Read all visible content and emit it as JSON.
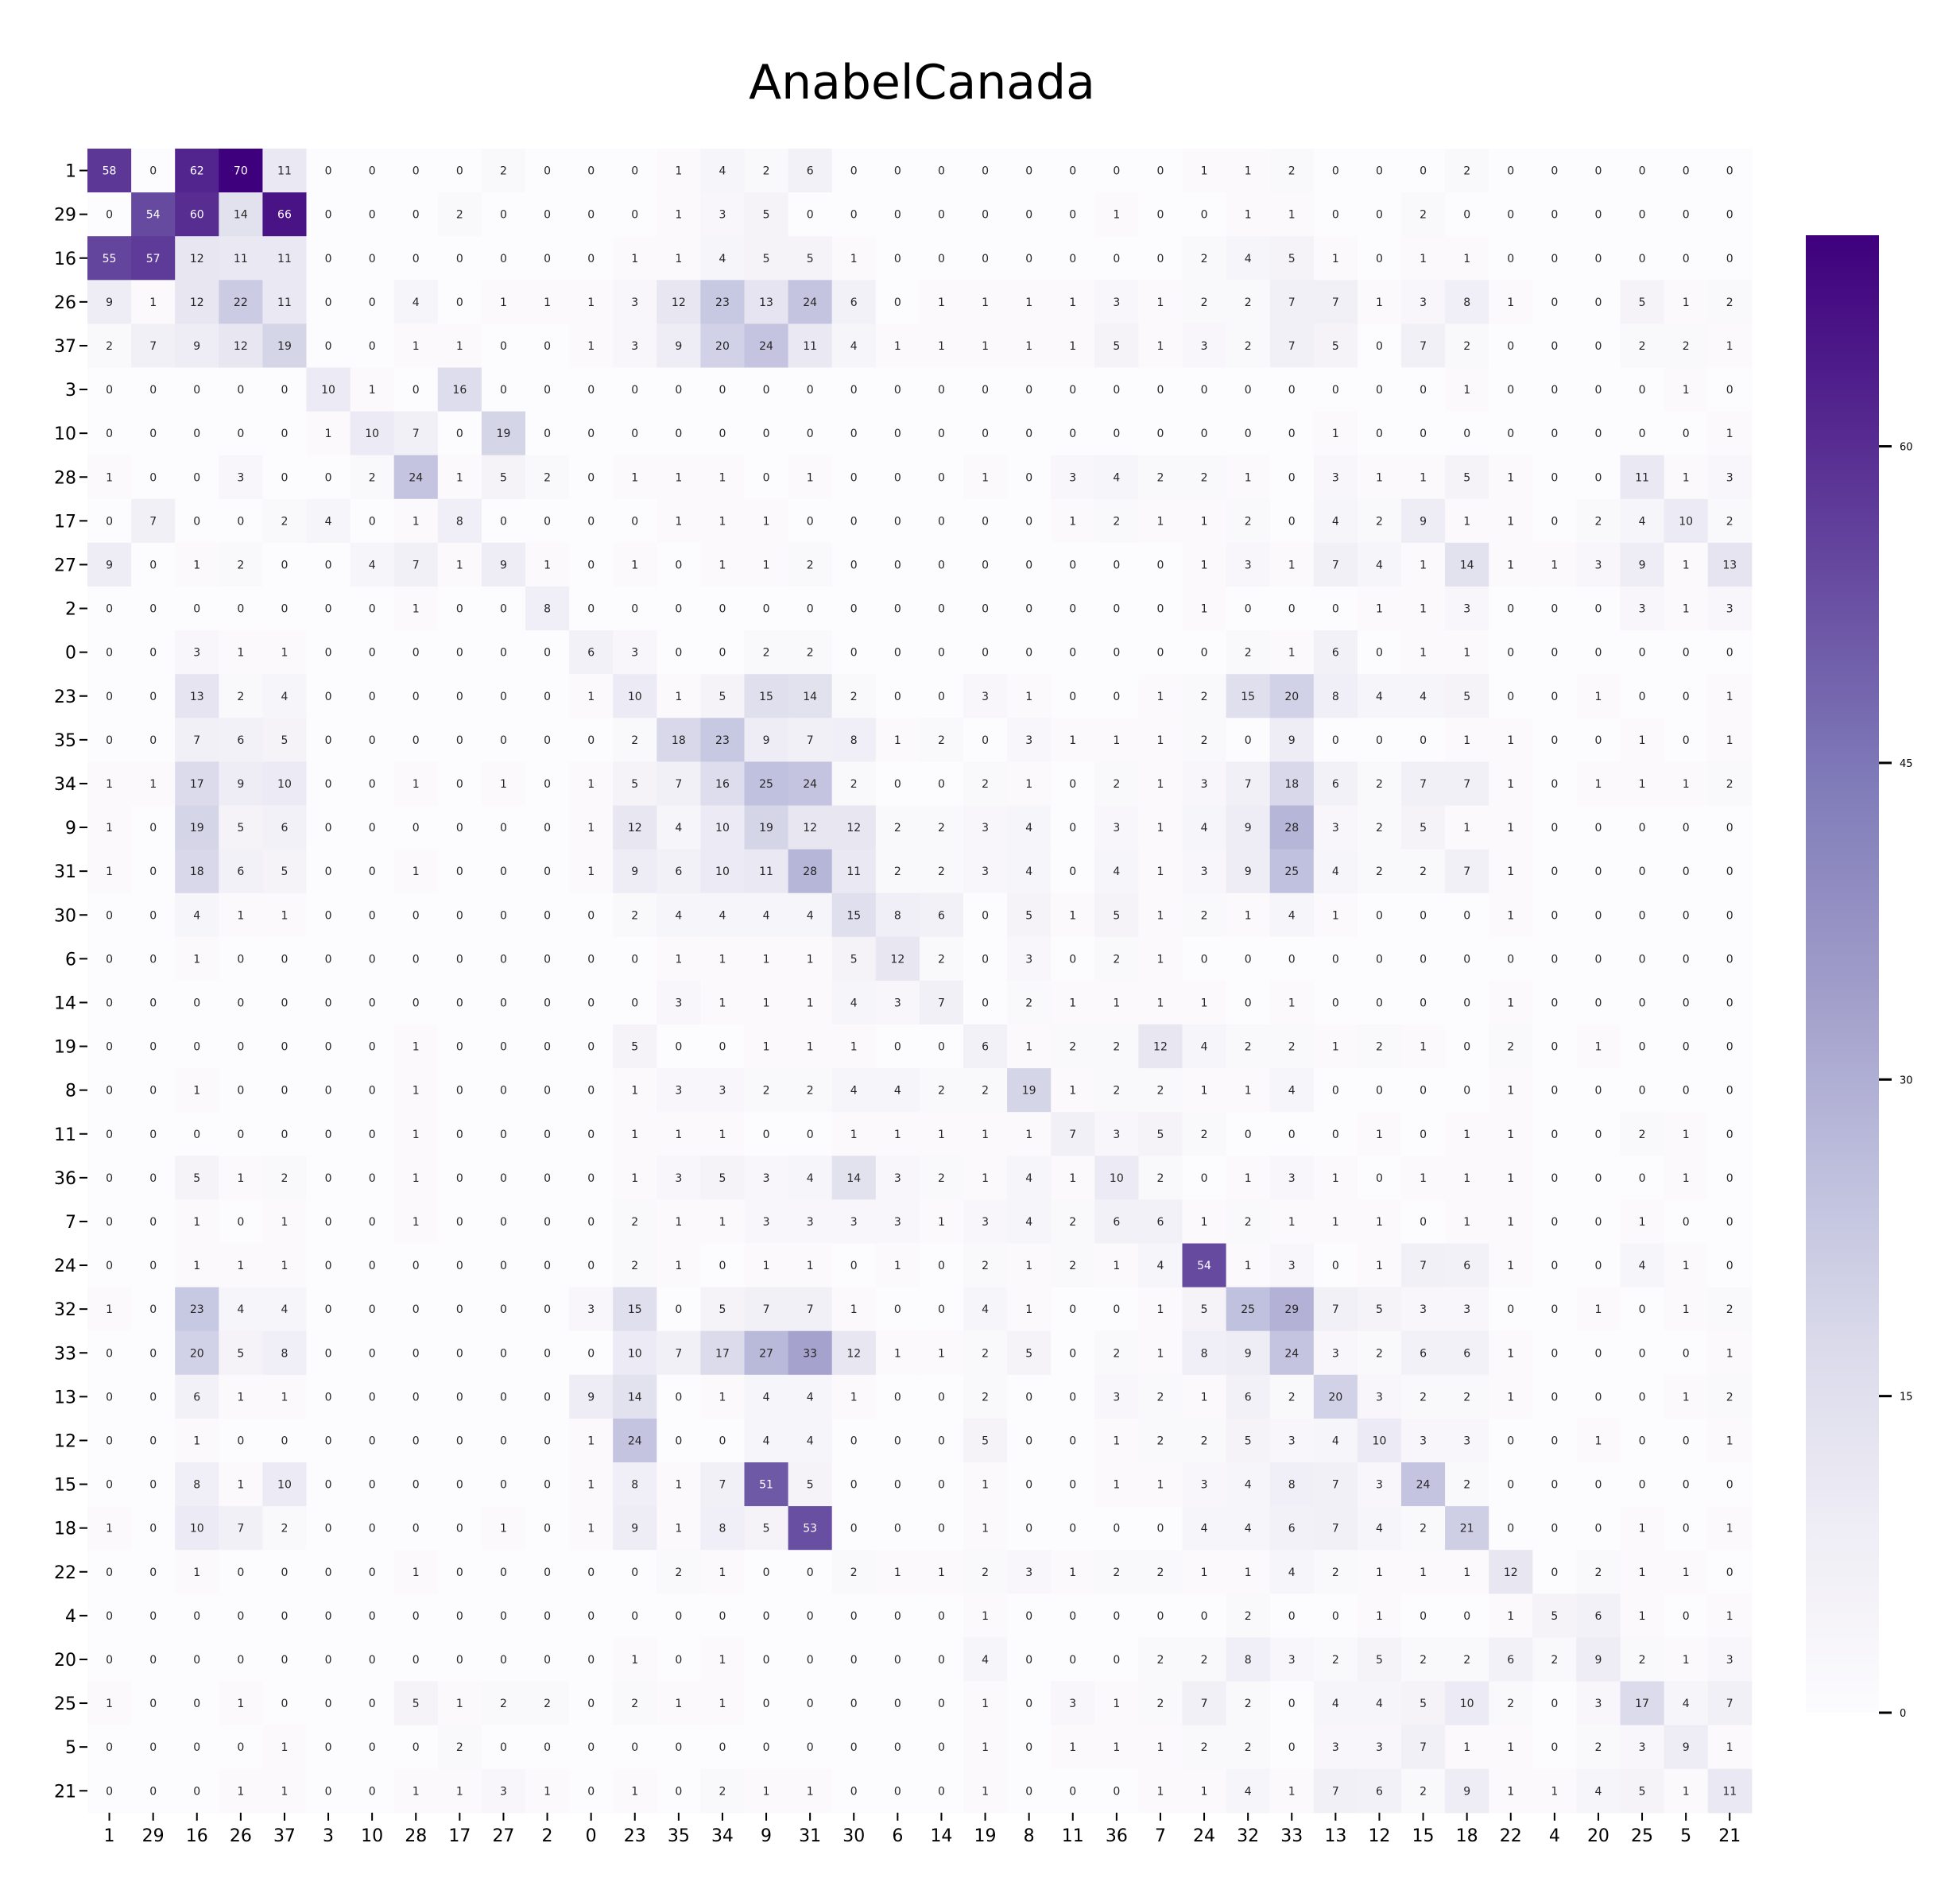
{
  "chart_data": {
    "type": "heatmap",
    "title": "AnabelCanada",
    "xlabel": "",
    "ylabel": "",
    "row_labels": [
      "1",
      "29",
      "16",
      "26",
      "37",
      "3",
      "10",
      "28",
      "17",
      "27",
      "2",
      "0",
      "23",
      "35",
      "34",
      "9",
      "31",
      "30",
      "6",
      "14",
      "19",
      "8",
      "11",
      "36",
      "7",
      "24",
      "32",
      "33",
      "13",
      "12",
      "15",
      "18",
      "22",
      "4",
      "20",
      "25",
      "5",
      "21"
    ],
    "col_labels": [
      "1",
      "29",
      "16",
      "26",
      "37",
      "3",
      "10",
      "28",
      "17",
      "27",
      "2",
      "0",
      "23",
      "35",
      "34",
      "9",
      "31",
      "30",
      "6",
      "14",
      "19",
      "8",
      "11",
      "36",
      "7",
      "24",
      "32",
      "33",
      "13",
      "12",
      "15",
      "18",
      "22",
      "4",
      "20",
      "25",
      "5",
      "21"
    ],
    "values": [
      [
        58,
        0,
        62,
        70,
        11,
        0,
        0,
        0,
        0,
        2,
        0,
        0,
        0,
        1,
        4,
        2,
        6,
        0,
        0,
        0,
        0,
        0,
        0,
        0,
        0,
        1,
        1,
        2,
        0,
        0,
        0,
        2,
        0,
        0,
        0,
        0,
        0,
        0
      ],
      [
        0,
        54,
        60,
        14,
        66,
        0,
        0,
        0,
        2,
        0,
        0,
        0,
        0,
        1,
        3,
        5,
        0,
        0,
        0,
        0,
        0,
        0,
        0,
        1,
        0,
        0,
        1,
        1,
        0,
        0,
        2,
        0,
        0,
        0,
        0,
        0,
        0,
        0
      ],
      [
        55,
        57,
        12,
        11,
        11,
        0,
        0,
        0,
        0,
        0,
        0,
        0,
        1,
        1,
        4,
        5,
        5,
        1,
        0,
        0,
        0,
        0,
        0,
        0,
        0,
        2,
        4,
        5,
        1,
        0,
        1,
        1,
        0,
        0,
        0,
        0,
        0,
        0
      ],
      [
        9,
        1,
        12,
        22,
        11,
        0,
        0,
        4,
        0,
        1,
        1,
        1,
        3,
        12,
        23,
        13,
        24,
        6,
        0,
        1,
        1,
        1,
        1,
        3,
        1,
        2,
        2,
        7,
        7,
        1,
        3,
        8,
        1,
        0,
        0,
        5,
        1,
        2
      ],
      [
        2,
        7,
        9,
        12,
        19,
        0,
        0,
        1,
        1,
        0,
        0,
        1,
        3,
        9,
        20,
        24,
        11,
        4,
        1,
        1,
        1,
        1,
        1,
        5,
        1,
        3,
        2,
        7,
        5,
        0,
        7,
        2,
        0,
        0,
        0,
        2,
        2,
        1
      ],
      [
        0,
        0,
        0,
        0,
        0,
        10,
        1,
        0,
        16,
        0,
        0,
        0,
        0,
        0,
        0,
        0,
        0,
        0,
        0,
        0,
        0,
        0,
        0,
        0,
        0,
        0,
        0,
        0,
        0,
        0,
        0,
        1,
        0,
        0,
        0,
        0,
        1,
        0
      ],
      [
        0,
        0,
        0,
        0,
        0,
        1,
        10,
        7,
        0,
        19,
        0,
        0,
        0,
        0,
        0,
        0,
        0,
        0,
        0,
        0,
        0,
        0,
        0,
        0,
        0,
        0,
        0,
        0,
        1,
        0,
        0,
        0,
        0,
        0,
        0,
        0,
        0,
        1
      ],
      [
        1,
        0,
        0,
        3,
        0,
        0,
        2,
        24,
        1,
        5,
        2,
        0,
        1,
        1,
        1,
        0,
        1,
        0,
        0,
        0,
        1,
        0,
        3,
        4,
        2,
        2,
        1,
        0,
        3,
        1,
        1,
        5,
        1,
        0,
        0,
        11,
        1,
        3
      ],
      [
        0,
        7,
        0,
        0,
        2,
        4,
        0,
        1,
        8,
        0,
        0,
        0,
        0,
        1,
        1,
        1,
        0,
        0,
        0,
        0,
        0,
        0,
        1,
        2,
        1,
        1,
        2,
        0,
        4,
        2,
        9,
        1,
        1,
        0,
        2,
        4,
        10,
        2
      ],
      [
        9,
        0,
        1,
        2,
        0,
        0,
        4,
        7,
        1,
        9,
        1,
        0,
        1,
        0,
        1,
        1,
        2,
        0,
        0,
        0,
        0,
        0,
        0,
        0,
        0,
        1,
        3,
        1,
        7,
        4,
        1,
        14,
        1,
        1,
        3,
        9,
        1,
        13
      ],
      [
        0,
        0,
        0,
        0,
        0,
        0,
        0,
        1,
        0,
        0,
        8,
        0,
        0,
        0,
        0,
        0,
        0,
        0,
        0,
        0,
        0,
        0,
        0,
        0,
        0,
        1,
        0,
        0,
        0,
        1,
        1,
        3,
        0,
        0,
        0,
        3,
        1,
        3
      ],
      [
        0,
        0,
        3,
        1,
        1,
        0,
        0,
        0,
        0,
        0,
        0,
        6,
        3,
        0,
        0,
        2,
        2,
        0,
        0,
        0,
        0,
        0,
        0,
        0,
        0,
        0,
        2,
        1,
        6,
        0,
        1,
        1,
        0,
        0,
        0,
        0,
        0,
        0
      ],
      [
        0,
        0,
        13,
        2,
        4,
        0,
        0,
        0,
        0,
        0,
        0,
        1,
        10,
        1,
        5,
        15,
        14,
        2,
        0,
        0,
        3,
        1,
        0,
        0,
        1,
        2,
        15,
        20,
        8,
        4,
        4,
        5,
        0,
        0,
        1,
        0,
        0,
        1
      ],
      [
        0,
        0,
        7,
        6,
        5,
        0,
        0,
        0,
        0,
        0,
        0,
        0,
        2,
        18,
        23,
        9,
        7,
        8,
        1,
        2,
        0,
        3,
        1,
        1,
        1,
        2,
        0,
        9,
        0,
        0,
        0,
        1,
        1,
        0,
        0,
        1,
        0,
        1
      ],
      [
        1,
        1,
        17,
        9,
        10,
        0,
        0,
        1,
        0,
        1,
        0,
        1,
        5,
        7,
        16,
        25,
        24,
        2,
        0,
        0,
        2,
        1,
        0,
        2,
        1,
        3,
        7,
        18,
        6,
        2,
        7,
        7,
        1,
        0,
        1,
        1,
        1,
        2
      ],
      [
        1,
        0,
        19,
        5,
        6,
        0,
        0,
        0,
        0,
        0,
        0,
        1,
        12,
        4,
        10,
        19,
        12,
        12,
        2,
        2,
        3,
        4,
        0,
        3,
        1,
        4,
        9,
        28,
        3,
        2,
        5,
        1,
        1,
        0,
        0,
        0,
        0,
        0
      ],
      [
        1,
        0,
        18,
        6,
        5,
        0,
        0,
        1,
        0,
        0,
        0,
        1,
        9,
        6,
        10,
        11,
        28,
        11,
        2,
        2,
        3,
        4,
        0,
        4,
        1,
        3,
        9,
        25,
        4,
        2,
        2,
        7,
        1,
        0,
        0,
        0,
        0,
        0
      ],
      [
        0,
        0,
        4,
        1,
        1,
        0,
        0,
        0,
        0,
        0,
        0,
        0,
        2,
        4,
        4,
        4,
        4,
        15,
        8,
        6,
        0,
        5,
        1,
        5,
        1,
        2,
        1,
        4,
        1,
        0,
        0,
        0,
        1,
        0,
        0,
        0,
        0,
        0
      ],
      [
        0,
        0,
        1,
        0,
        0,
        0,
        0,
        0,
        0,
        0,
        0,
        0,
        0,
        1,
        1,
        1,
        1,
        5,
        12,
        2,
        0,
        3,
        0,
        2,
        1,
        0,
        0,
        0,
        0,
        0,
        0,
        0,
        0,
        0,
        0,
        0,
        0,
        0
      ],
      [
        0,
        0,
        0,
        0,
        0,
        0,
        0,
        0,
        0,
        0,
        0,
        0,
        0,
        3,
        1,
        1,
        1,
        4,
        3,
        7,
        0,
        2,
        1,
        1,
        1,
        1,
        0,
        1,
        0,
        0,
        0,
        0,
        1,
        0,
        0,
        0,
        0,
        0
      ],
      [
        0,
        0,
        0,
        0,
        0,
        0,
        0,
        1,
        0,
        0,
        0,
        0,
        5,
        0,
        0,
        1,
        1,
        1,
        0,
        0,
        6,
        1,
        2,
        2,
        12,
        4,
        2,
        2,
        1,
        2,
        1,
        0,
        2,
        0,
        1,
        0,
        0,
        0
      ],
      [
        0,
        0,
        1,
        0,
        0,
        0,
        0,
        1,
        0,
        0,
        0,
        0,
        1,
        3,
        3,
        2,
        2,
        4,
        4,
        2,
        2,
        19,
        1,
        2,
        2,
        1,
        1,
        4,
        0,
        0,
        0,
        0,
        1,
        0,
        0,
        0,
        0,
        0
      ],
      [
        0,
        0,
        0,
        0,
        0,
        0,
        0,
        1,
        0,
        0,
        0,
        0,
        1,
        1,
        1,
        0,
        0,
        1,
        1,
        1,
        1,
        1,
        7,
        3,
        5,
        2,
        0,
        0,
        0,
        1,
        0,
        1,
        1,
        0,
        0,
        2,
        1,
        0
      ],
      [
        0,
        0,
        5,
        1,
        2,
        0,
        0,
        1,
        0,
        0,
        0,
        0,
        1,
        3,
        5,
        3,
        4,
        14,
        3,
        2,
        1,
        4,
        1,
        10,
        2,
        0,
        1,
        3,
        1,
        0,
        1,
        1,
        1,
        0,
        0,
        0,
        1,
        0
      ],
      [
        0,
        0,
        1,
        0,
        1,
        0,
        0,
        1,
        0,
        0,
        0,
        0,
        2,
        1,
        1,
        3,
        3,
        3,
        3,
        1,
        3,
        4,
        2,
        6,
        6,
        1,
        2,
        1,
        1,
        1,
        0,
        1,
        1,
        0,
        0,
        1,
        0,
        0
      ],
      [
        0,
        0,
        1,
        1,
        1,
        0,
        0,
        0,
        0,
        0,
        0,
        0,
        2,
        1,
        0,
        1,
        1,
        0,
        1,
        0,
        2,
        1,
        2,
        1,
        4,
        54,
        1,
        3,
        0,
        1,
        7,
        6,
        1,
        0,
        0,
        4,
        1,
        0
      ],
      [
        1,
        0,
        23,
        4,
        4,
        0,
        0,
        0,
        0,
        0,
        0,
        3,
        15,
        0,
        5,
        7,
        7,
        1,
        0,
        0,
        4,
        1,
        0,
        0,
        1,
        5,
        25,
        29,
        7,
        5,
        3,
        3,
        0,
        0,
        1,
        0,
        1,
        2
      ],
      [
        0,
        0,
        20,
        5,
        8,
        0,
        0,
        0,
        0,
        0,
        0,
        0,
        10,
        7,
        17,
        27,
        33,
        12,
        1,
        1,
        2,
        5,
        0,
        2,
        1,
        8,
        9,
        24,
        3,
        2,
        6,
        6,
        1,
        0,
        0,
        0,
        0,
        1
      ],
      [
        0,
        0,
        6,
        1,
        1,
        0,
        0,
        0,
        0,
        0,
        0,
        9,
        14,
        0,
        1,
        4,
        4,
        1,
        0,
        0,
        2,
        0,
        0,
        3,
        2,
        1,
        6,
        2,
        20,
        3,
        2,
        2,
        1,
        0,
        0,
        0,
        1,
        2
      ],
      [
        0,
        0,
        1,
        0,
        0,
        0,
        0,
        0,
        0,
        0,
        0,
        1,
        24,
        0,
        0,
        4,
        4,
        0,
        0,
        0,
        5,
        0,
        0,
        1,
        2,
        2,
        5,
        3,
        4,
        10,
        3,
        3,
        0,
        0,
        1,
        0,
        0,
        1
      ],
      [
        0,
        0,
        8,
        1,
        10,
        0,
        0,
        0,
        0,
        0,
        0,
        1,
        8,
        1,
        7,
        51,
        5,
        0,
        0,
        0,
        1,
        0,
        0,
        1,
        1,
        3,
        4,
        8,
        7,
        3,
        24,
        2,
        0,
        0,
        0,
        0,
        0,
        0
      ],
      [
        1,
        0,
        10,
        7,
        2,
        0,
        0,
        0,
        0,
        1,
        0,
        1,
        9,
        1,
        8,
        5,
        53,
        0,
        0,
        0,
        1,
        0,
        0,
        0,
        0,
        4,
        4,
        6,
        7,
        4,
        2,
        21,
        0,
        0,
        0,
        1,
        0,
        1
      ],
      [
        0,
        0,
        1,
        0,
        0,
        0,
        0,
        1,
        0,
        0,
        0,
        0,
        0,
        2,
        1,
        0,
        0,
        2,
        1,
        1,
        2,
        3,
        1,
        2,
        2,
        1,
        1,
        4,
        2,
        1,
        1,
        1,
        12,
        0,
        2,
        1,
        1,
        0
      ],
      [
        0,
        0,
        0,
        0,
        0,
        0,
        0,
        0,
        0,
        0,
        0,
        0,
        0,
        0,
        0,
        0,
        0,
        0,
        0,
        0,
        1,
        0,
        0,
        0,
        0,
        0,
        2,
        0,
        0,
        1,
        0,
        0,
        1,
        5,
        6,
        1,
        0,
        1
      ],
      [
        0,
        0,
        0,
        0,
        0,
        0,
        0,
        0,
        0,
        0,
        0,
        0,
        1,
        0,
        1,
        0,
        0,
        0,
        0,
        0,
        4,
        0,
        0,
        0,
        2,
        2,
        8,
        3,
        2,
        5,
        2,
        2,
        6,
        2,
        9,
        2,
        1,
        3
      ],
      [
        1,
        0,
        0,
        1,
        0,
        0,
        0,
        5,
        1,
        2,
        2,
        0,
        2,
        1,
        1,
        0,
        0,
        0,
        0,
        0,
        1,
        0,
        3,
        1,
        2,
        7,
        2,
        0,
        4,
        4,
        5,
        10,
        2,
        0,
        3,
        17,
        4,
        7
      ],
      [
        0,
        0,
        0,
        0,
        1,
        0,
        0,
        0,
        2,
        0,
        0,
        0,
        0,
        0,
        0,
        0,
        0,
        0,
        0,
        0,
        1,
        0,
        1,
        1,
        1,
        2,
        2,
        0,
        3,
        3,
        7,
        1,
        1,
        0,
        2,
        3,
        9,
        1
      ],
      [
        0,
        0,
        0,
        1,
        1,
        0,
        0,
        1,
        1,
        3,
        1,
        0,
        1,
        0,
        2,
        1,
        1,
        0,
        0,
        0,
        1,
        0,
        0,
        0,
        1,
        1,
        4,
        1,
        7,
        6,
        2,
        9,
        1,
        1,
        4,
        5,
        1,
        11
      ]
    ],
    "vmin": 0,
    "vmax": 70,
    "colormap": "Purples",
    "colorbar_ticks": [
      0,
      15,
      30,
      45,
      60
    ]
  }
}
